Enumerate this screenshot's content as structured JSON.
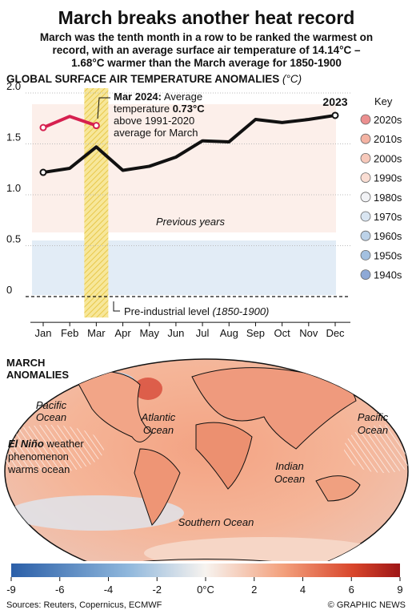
{
  "header": {
    "title": "March breaks another heat record",
    "subtitle": [
      "March was the tenth month in a row to be ranked the warmest on",
      "record, with an average surface air temperature of 14.14°C –",
      "1.68°C warmer than the March average for 1850-1900"
    ]
  },
  "chart_data": {
    "type": "line",
    "title": "GLOBAL SURFACE AIR TEMPERATURE ANOMALIES",
    "unit": "(°C)",
    "categories": [
      "Jan",
      "Feb",
      "Mar",
      "Apr",
      "May",
      "Jun",
      "Jul",
      "Aug",
      "Sep",
      "Oct",
      "Nov",
      "Dec"
    ],
    "series": [
      {
        "name": "2023",
        "color": "#111111",
        "values": [
          1.22,
          1.26,
          1.47,
          1.24,
          1.28,
          1.37,
          1.53,
          1.52,
          1.74,
          1.71,
          1.74,
          1.78
        ]
      },
      {
        "color": "#d6204f",
        "values": [
          1.66,
          1.77,
          1.68,
          null,
          null,
          null,
          null,
          null,
          null,
          null,
          null,
          null
        ]
      }
    ],
    "ylim": [
      -0.3,
      2.0
    ],
    "yticks": [
      0,
      0.5,
      {
        "value": 1,
        "label": "1.0"
      },
      1.5,
      {
        "value": 2,
        "label": "2.0"
      }
    ],
    "grid": true,
    "annotations": {
      "march_2024": [
        "Mar 2024:",
        " Average",
        "temperature ",
        "0.73°C",
        "above 1991-2020",
        "average for March"
      ],
      "previous": "Previous years",
      "preindustrial": [
        "Pre-industrial level ",
        "(1850-1900)"
      ]
    },
    "key": {
      "title": "Key",
      "items": [
        {
          "label": "2020s",
          "color": "#eb8f8f"
        },
        {
          "label": "2010s",
          "color": "#f4b3a3"
        },
        {
          "label": "2000s",
          "color": "#f7c9bb"
        },
        {
          "label": "1990s",
          "color": "#f9ddd3"
        },
        {
          "label": "1980s",
          "color": "#f1f2f5"
        },
        {
          "label": "1970s",
          "color": "#d9e5f1"
        },
        {
          "label": "1960s",
          "color": "#bcd2e8"
        },
        {
          "label": "1950s",
          "color": "#a3c0e0"
        },
        {
          "label": "1940s",
          "color": "#8ea9d6"
        }
      ]
    }
  },
  "map": {
    "title": [
      "MARCH",
      "ANOMALIES"
    ],
    "labels": [
      [
        "Pacific",
        "Ocean"
      ],
      [
        "Atlantic",
        "Ocean"
      ],
      [
        "Pacific",
        "Ocean"
      ],
      [
        "Indian",
        "Ocean"
      ],
      [
        "Southern Ocean"
      ]
    ],
    "el_nino": [
      "El Niño",
      " weather",
      "phenomenon",
      "warms ocean"
    ]
  },
  "colorbar": {
    "ticks": [
      -9,
      -6,
      -4,
      -2,
      {
        "value": 0,
        "label": "0°C"
      },
      2,
      4,
      6,
      9
    ]
  },
  "footer": {
    "sources": "Sources: Reuters, Copernicus, ECMWF",
    "credit": "© GRAPHIC NEWS"
  }
}
